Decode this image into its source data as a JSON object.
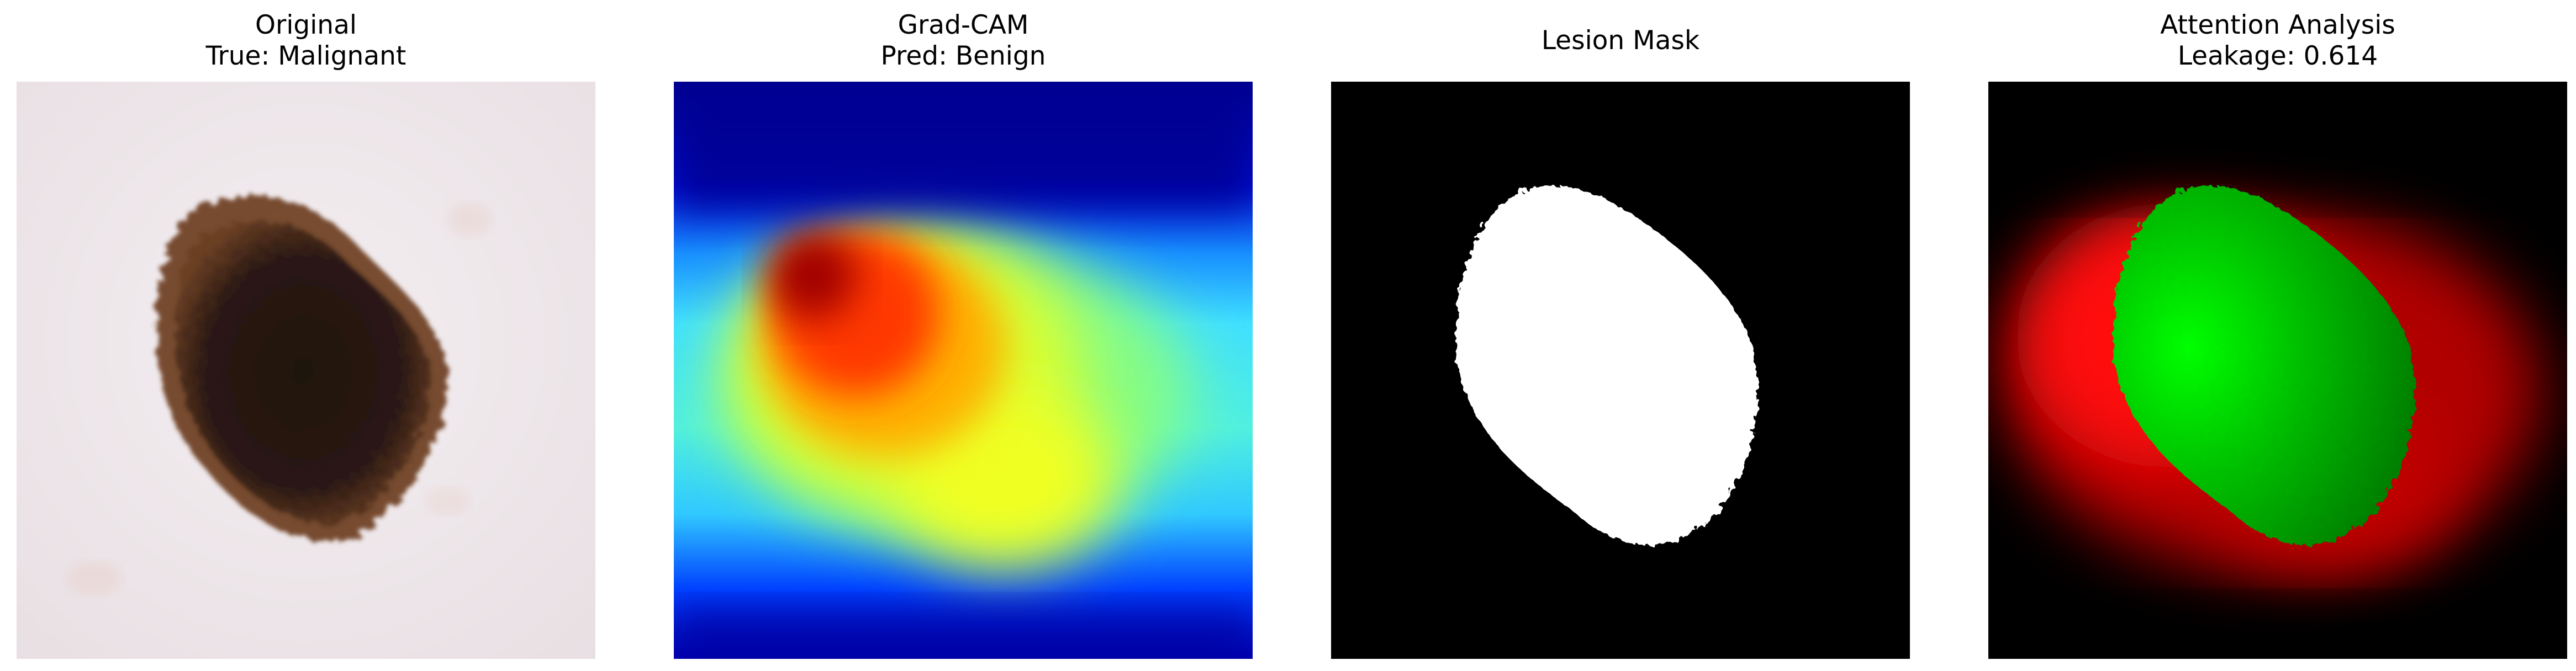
{
  "panels": [
    {
      "line1": "Original",
      "line2": "True: Malignant"
    },
    {
      "line1": "Grad-CAM",
      "line2": "Pred: Benign"
    },
    {
      "line1": "Lesion Mask",
      "line2": ""
    },
    {
      "line1": "Attention Analysis",
      "line2": "Leakage: 0.614"
    }
  ],
  "colors": {
    "skin": "#efe8ec",
    "lesion": "#2a1710",
    "mask_bg": "#000000",
    "mask_fg": "#ffffff",
    "attention_green": "#00dd00",
    "attention_red": "#ee0000"
  }
}
